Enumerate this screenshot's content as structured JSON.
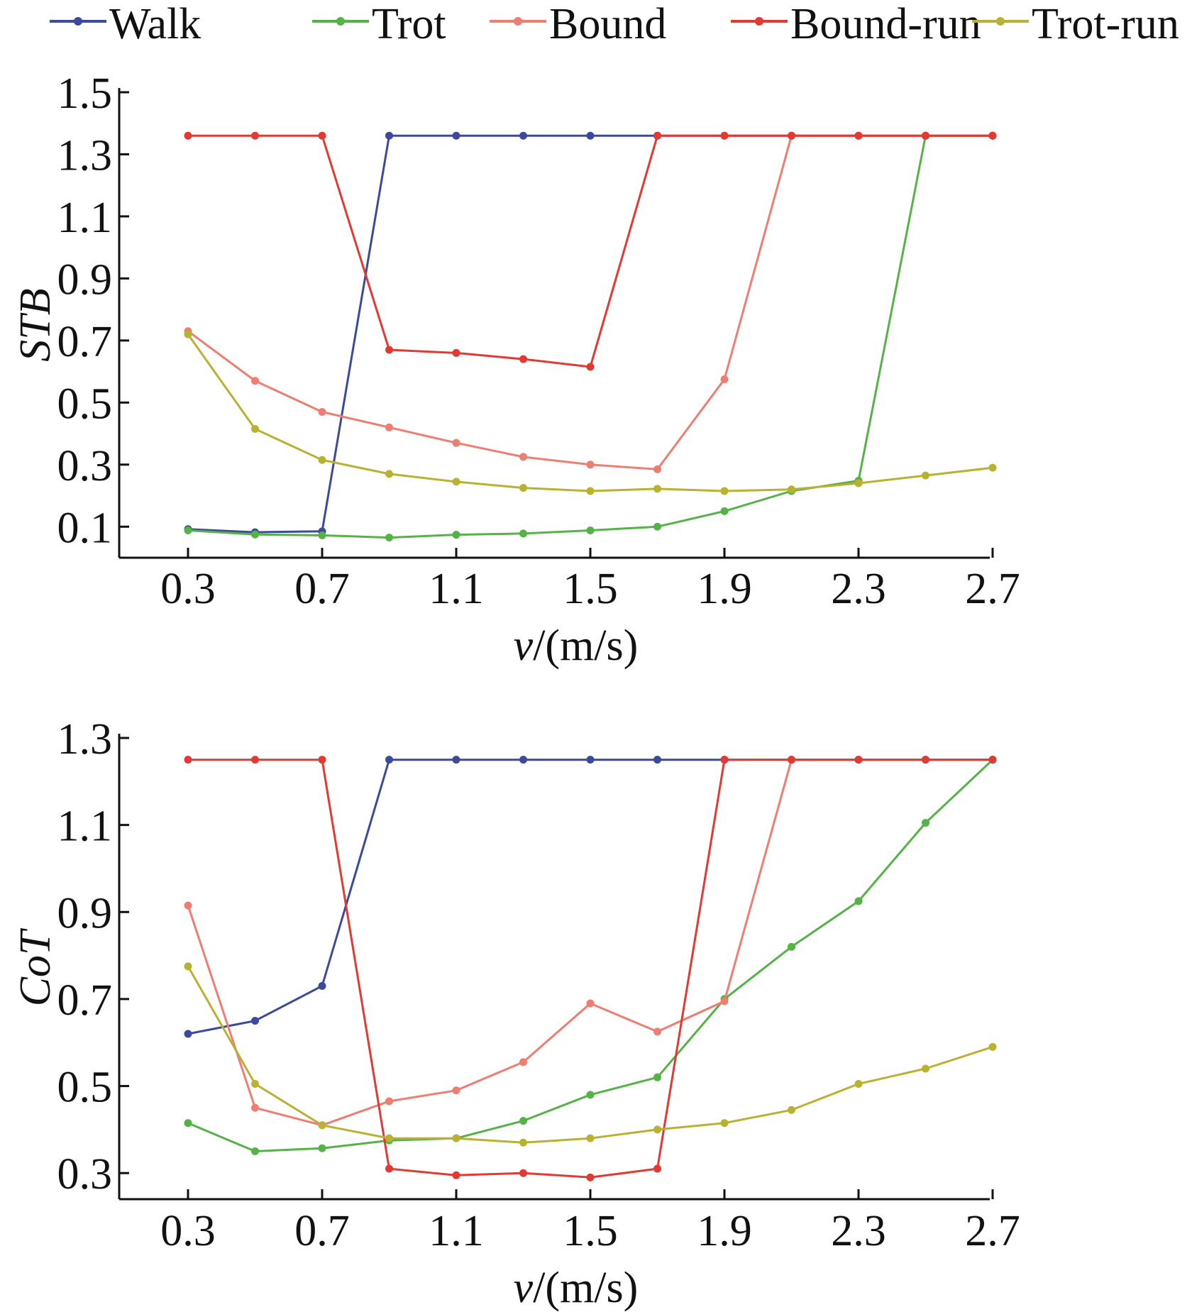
{
  "legend": {
    "placement": "top",
    "entries": [
      "Walk",
      "Trot",
      "Bound",
      "Bound-run",
      "Trot-run"
    ]
  },
  "chart_data": [
    {
      "type": "line",
      "xlabel_italic": "v",
      "xlabel_rest": "/(m/s)",
      "ylabel": "STB",
      "xlim": [
        0.1,
        2.7
      ],
      "ylim": [
        0.0,
        1.5
      ],
      "xticks": [
        "0.3",
        "0.7",
        "1.1",
        "1.5",
        "1.9",
        "2.3",
        "2.7"
      ],
      "yticks": [
        "0.1",
        "0.3",
        "0.5",
        "0.7",
        "0.9",
        "1.1",
        "1.3",
        "1.5"
      ],
      "x": [
        0.3,
        0.5,
        0.7,
        0.9,
        1.1,
        1.3,
        1.5,
        1.7,
        1.9,
        2.1,
        2.3,
        2.5,
        2.7
      ],
      "series": [
        {
          "name": "Walk",
          "color": "#3b4a9a",
          "values": [
            0.092,
            0.082,
            0.085,
            1.36,
            1.36,
            1.36,
            1.36,
            1.36,
            1.36,
            1.36,
            1.36,
            1.36,
            1.36
          ]
        },
        {
          "name": "Trot",
          "color": "#55b247",
          "values": [
            0.088,
            0.075,
            0.072,
            0.065,
            0.074,
            0.078,
            0.088,
            0.1,
            0.15,
            0.215,
            0.248,
            1.36,
            1.36
          ]
        },
        {
          "name": "Bound",
          "color": "#ee7d72",
          "values": [
            0.73,
            0.57,
            0.47,
            0.42,
            0.37,
            0.325,
            0.3,
            0.285,
            0.575,
            1.36,
            1.36,
            1.36,
            1.36
          ]
        },
        {
          "name": "Bound-run",
          "color": "#e03a32",
          "values": [
            1.36,
            1.36,
            1.36,
            0.67,
            0.66,
            0.64,
            0.615,
            1.36,
            1.36,
            1.36,
            1.36,
            1.36,
            1.36
          ]
        },
        {
          "name": "Trot-run",
          "color": "#b9b131",
          "values": [
            0.72,
            0.415,
            0.315,
            0.27,
            0.245,
            0.225,
            0.215,
            0.222,
            0.215,
            0.22,
            0.24,
            0.265,
            0.29
          ]
        }
      ]
    },
    {
      "type": "line",
      "xlabel_italic": "v",
      "xlabel_rest": "/(m/s)",
      "ylabel": "CoT",
      "xlim": [
        0.1,
        2.7
      ],
      "ylim": [
        0.24,
        1.3
      ],
      "xticks": [
        "0.3",
        "0.7",
        "1.1",
        "1.5",
        "1.9",
        "2.3",
        "2.7"
      ],
      "yticks": [
        "0.3",
        "0.5",
        "0.7",
        "0.9",
        "1.1",
        "1.3"
      ],
      "x": [
        0.3,
        0.5,
        0.7,
        0.9,
        1.1,
        1.3,
        1.5,
        1.7,
        1.9,
        2.1,
        2.3,
        2.5,
        2.7
      ],
      "series": [
        {
          "name": "Walk",
          "color": "#3b4a9a",
          "values": [
            0.62,
            0.65,
            0.73,
            1.25,
            1.25,
            1.25,
            1.25,
            1.25,
            1.25,
            1.25,
            1.25,
            1.25,
            1.25
          ]
        },
        {
          "name": "Trot",
          "color": "#55b247",
          "values": [
            0.415,
            0.35,
            0.357,
            0.375,
            0.38,
            0.42,
            0.48,
            0.52,
            0.7,
            0.82,
            0.925,
            1.105,
            1.25
          ]
        },
        {
          "name": "Bound",
          "color": "#ee7d72",
          "values": [
            0.915,
            0.45,
            0.41,
            0.465,
            0.49,
            0.555,
            0.69,
            0.625,
            0.695,
            1.25,
            1.25,
            1.25,
            1.25
          ]
        },
        {
          "name": "Bound-run",
          "color": "#e03a32",
          "values": [
            1.25,
            1.25,
            1.25,
            0.31,
            0.295,
            0.3,
            0.29,
            0.31,
            1.25,
            1.25,
            1.25,
            1.25,
            1.25
          ]
        },
        {
          "name": "Trot-run",
          "color": "#b9b131",
          "values": [
            0.775,
            0.505,
            0.41,
            0.38,
            0.38,
            0.37,
            0.38,
            0.4,
            0.415,
            0.445,
            0.505,
            0.54,
            0.59
          ]
        }
      ]
    }
  ]
}
